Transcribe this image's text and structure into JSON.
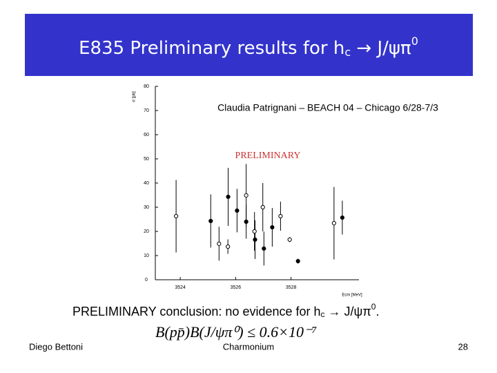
{
  "header": {
    "title": [
      "E835 Preliminary results for h",
      "c",
      " → J/ψπ",
      "0"
    ]
  },
  "subtitle": "Claudia Patrignani – BEACH 04 – Chicago 6/28-7/3",
  "chart_data": {
    "type": "scatter",
    "ylabel": "σ [pb]",
    "xlabel": "Ecm [MeV]",
    "annotation": "PRELIMINARY",
    "xlim": [
      3523.1,
      3530.45
    ],
    "ylim": [
      0,
      80
    ],
    "xticks": [
      3524,
      3526,
      3528
    ],
    "yticks": [
      0,
      10,
      20,
      30,
      40,
      50,
      60,
      70,
      80
    ],
    "series": [
      {
        "color": "#000000",
        "marker": "filled",
        "x": [
          3525.1,
          3525.73,
          3526.05,
          3526.38,
          3526.7,
          3527.02,
          3527.32,
          3528.25,
          3529.85
        ],
        "values": [
          24.3,
          34.3,
          28.6,
          24,
          16.6,
          12.9,
          21.7,
          7.7,
          25.7
        ],
        "errors": [
          11,
          12,
          9,
          7,
          8,
          7,
          8,
          1,
          7
        ]
      },
      {
        "color": "#000000",
        "marker": "open",
        "x": [
          3523.85,
          3525.4,
          3525.72,
          3526.38,
          3526.68,
          3526.98,
          3527.62,
          3527.95,
          3529.55
        ],
        "values": [
          26.3,
          14.9,
          13.7,
          34.9,
          20,
          30,
          26.3,
          16.6,
          23.4
        ],
        "errors": [
          15,
          7,
          3,
          13,
          8,
          10,
          6,
          1,
          15
        ]
      }
    ]
  },
  "conclusion": [
    "PRELIMINARY conclusion: no evidence for h",
    "c",
    " → J/ψπ",
    "0",
    "."
  ],
  "formula": "B(pp̄)B(J/ψπ⁰) ≤ 0.6×10⁻⁷",
  "footer": {
    "left": "Diego Bettoni",
    "center": "Charmonium",
    "page": "28"
  }
}
